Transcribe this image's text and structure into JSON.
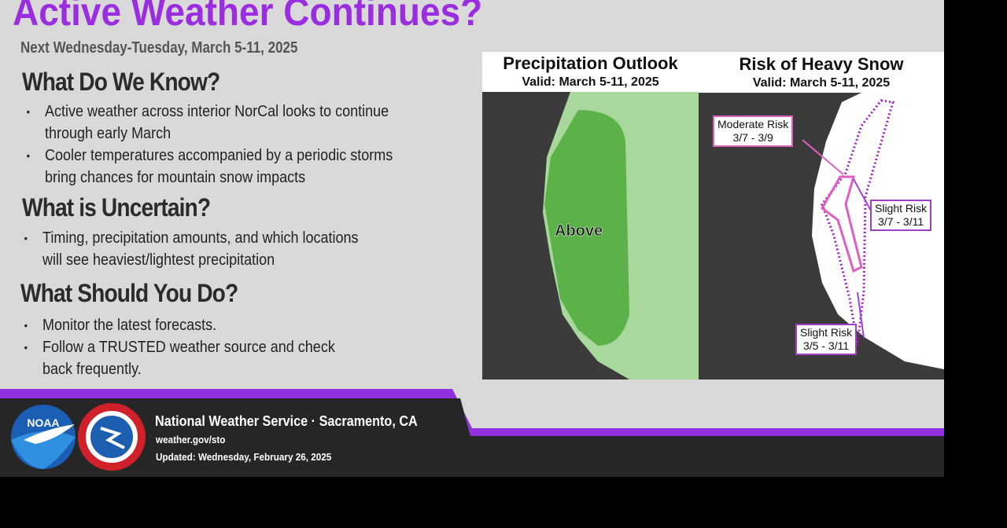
{
  "header": {
    "title": "Active Weather Continues?",
    "subtitle": "Next Wednesday-Tuesday, March 5-11, 2025"
  },
  "sections": [
    {
      "heading": "What Do We Know?",
      "bullets": [
        "Active weather across interior NorCal looks to continue through early March",
        "Cooler temperatures accompanied by a periodic storms bring chances for mountain snow impacts"
      ]
    },
    {
      "heading": "What is Uncertain?",
      "bullets": [
        "Timing, precipitation amounts, and which locations will see heaviest/lightest precipitation"
      ]
    },
    {
      "heading": "What Should You Do?",
      "bullets": [
        "Monitor the latest forecasts.",
        "Follow a TRUSTED weather source and check back frequently."
      ]
    }
  ],
  "maps": [
    {
      "title": "Precipitation Outlook",
      "subtitle": "Valid: March 5-11, 2025",
      "labels": [
        "Above"
      ]
    },
    {
      "title": "Risk of Heavy Snow",
      "subtitle": "Valid: March 5-11, 2025",
      "labels": [
        {
          "name": "Moderate Risk",
          "dates": "3/7 - 3/9"
        },
        {
          "name": "Slight Risk",
          "dates": "3/7 - 3/11"
        },
        {
          "name": "Slight Risk",
          "dates": "3/5 - 3/11"
        }
      ]
    }
  ],
  "footer": {
    "office": "National Weather Service · Sacramento, CA",
    "url": "weather.gov/sto",
    "updated": "Updated: Wednesday, February 26, 2025",
    "noaa": "NOAA"
  }
}
